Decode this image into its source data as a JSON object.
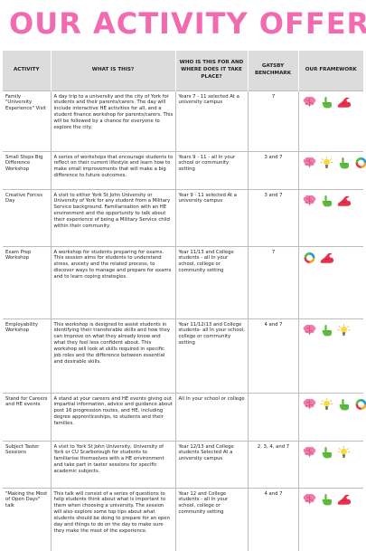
{
  "title": "OUR ACTIVITY OFFER",
  "headers": {
    "activity": "Activity",
    "what": "What is this?",
    "who": "Who is this for and where does it take place?",
    "gatsby": "Gatsby Benchmark",
    "framework": "Our Framework"
  },
  "rows": [
    {
      "activity": "Family \"University Experience\" Visit",
      "what": "A day trip to a university and the city of York for students and their parents/carers. The day will include interactive HE activities for all, and a student finance workshop for parents/carers. This will be followed by a chance for everyone to explore the city.",
      "who": "Years 7 - 11 selected At a university campus",
      "gatsby": "7",
      "icons": [
        "brain-icon",
        "hand-pointer-icon",
        "flexed-arm-icon"
      ]
    },
    {
      "activity": "Small Steps Big Difference Workshop",
      "what": "A series of workshops that encourage students to reflect on their current lifestyle and learn how to make small improvements that will make a big difference to future outcomes.",
      "who": "Years 9 - 11 - all In your school or community setting",
      "gatsby": "3 and 7",
      "icons": [
        "brain-icon",
        "lightbulb-icon",
        "hand-pointer-icon",
        "cycle-icon"
      ]
    },
    {
      "activity": "Creative Forces Day",
      "what": "A visit to either York St John University or University of York for any student from a Military Service background. Familiarisation with an HE environment and the opportunity to talk about their experience of being a Military Service child within their community.",
      "who": "Year 9 - 11 selected At a university campus",
      "gatsby": "3 and 7",
      "icons": [
        "brain-icon",
        "hand-pointer-icon",
        "flexed-arm-icon"
      ]
    },
    {
      "activity": "Exam Prep Workshop",
      "what": "A workshop for students preparing for exams. This session aims for students to understand stress, anxiety and the related process, to discover ways to manage and prepare for exams and to learn coping strategies.",
      "who": "Year 11/13 and College students - all In your school, college or community setting",
      "gatsby": "7",
      "icons": [
        "cycle-icon",
        "flexed-arm-icon"
      ]
    },
    {
      "activity": "Employability Workshop",
      "what": "This workshop is designed to assist students in identifying their transferable skills and how they can improve on what they already know and what they feel less confident about. This workshop will look at skills required in specific job roles and the difference between essential and desirable skills.",
      "who": "Year 11/12/13 and College students- all In your school, college or community setting",
      "gatsby": "4 and 7",
      "icons": [
        "brain-icon",
        "hand-pointer-icon",
        "lightbulb-icon"
      ]
    },
    {
      "activity": "Stand for Careers and HE events",
      "what": "A stand at your careers and HE events giving out impartial information, advice and guidance about post 16 progression routes, and HE, including degree apprenticeships, to students and their families.",
      "who": "All In your school or college",
      "gatsby": "",
      "icons": [
        "brain-icon",
        "lightbulb-icon",
        "hand-pointer-icon",
        "cycle-icon"
      ]
    },
    {
      "activity": "Subject Taster Sessions",
      "what": "A visit to York St John University, University of York or CU Scarborough for students to familiarise themselves with a HE environment and take part in taster sessions for specific academic subjects.",
      "who": "Year 12/13 and College students Selected At a university campus",
      "gatsby": "2, 3, 4, and 7",
      "icons": [
        "brain-icon",
        "hand-pointer-icon",
        "lightbulb-icon"
      ]
    },
    {
      "activity": "\"Making the Most of Open Days\" talk",
      "what": "This talk will consist of a series of questions to help students think about what is important to them when choosing a university. The session will also explore some top tips about what students should be doing to prepare for an open day and things to do on the day to make sure they make the most of the experience.",
      "who": "Year 12 and College students - all In your school, college or community setting",
      "gatsby": "4 and 7",
      "icons": [
        "brain-icon",
        "hand-pointer-icon",
        "flexed-arm-icon"
      ]
    }
  ]
}
